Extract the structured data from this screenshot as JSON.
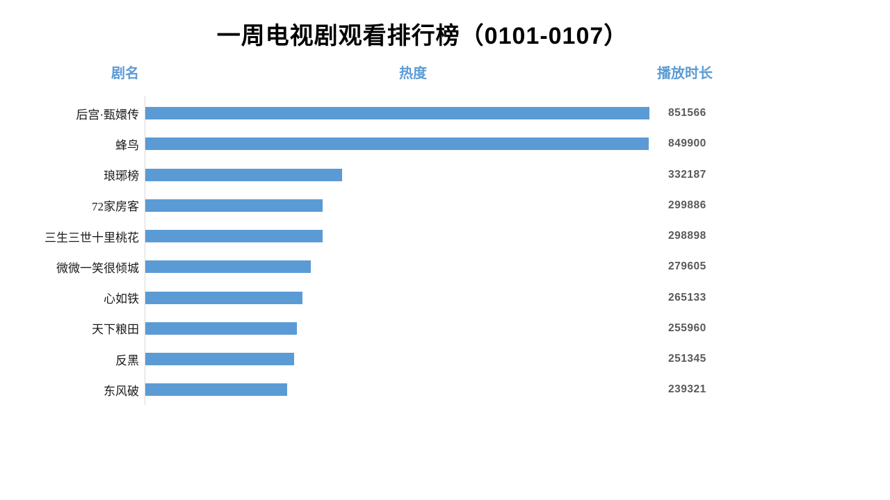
{
  "title": "一周电视剧观看排行榜（0101-0107）",
  "columns": {
    "name": "剧名",
    "heat": "热度",
    "duration": "播放时长"
  },
  "colors": {
    "bar": "#5B9BD5",
    "header": "#5B9BD5",
    "value": "#595959",
    "axis": "#D9D9D9",
    "title": "#000000"
  },
  "chart_data": {
    "type": "bar",
    "orientation": "horizontal",
    "title": "一周电视剧观看排行榜（0101-0107）",
    "category_column_label": "剧名",
    "bar_column_label": "热度",
    "value_column_label": "播放时长",
    "categories": [
      "后宫·甄嬛传",
      "蜂鸟",
      "琅琊榜",
      "72家房客",
      "三生三世十里桃花",
      "微微一笑很倾城",
      "心如铁",
      "天下粮田",
      "反黑",
      "东风破"
    ],
    "values": [
      851566,
      849900,
      332187,
      299886,
      298898,
      279605,
      265133,
      255960,
      251345,
      239321
    ],
    "xlim": [
      0,
      851566
    ],
    "grid": false,
    "legend": false,
    "sort": "descending"
  }
}
